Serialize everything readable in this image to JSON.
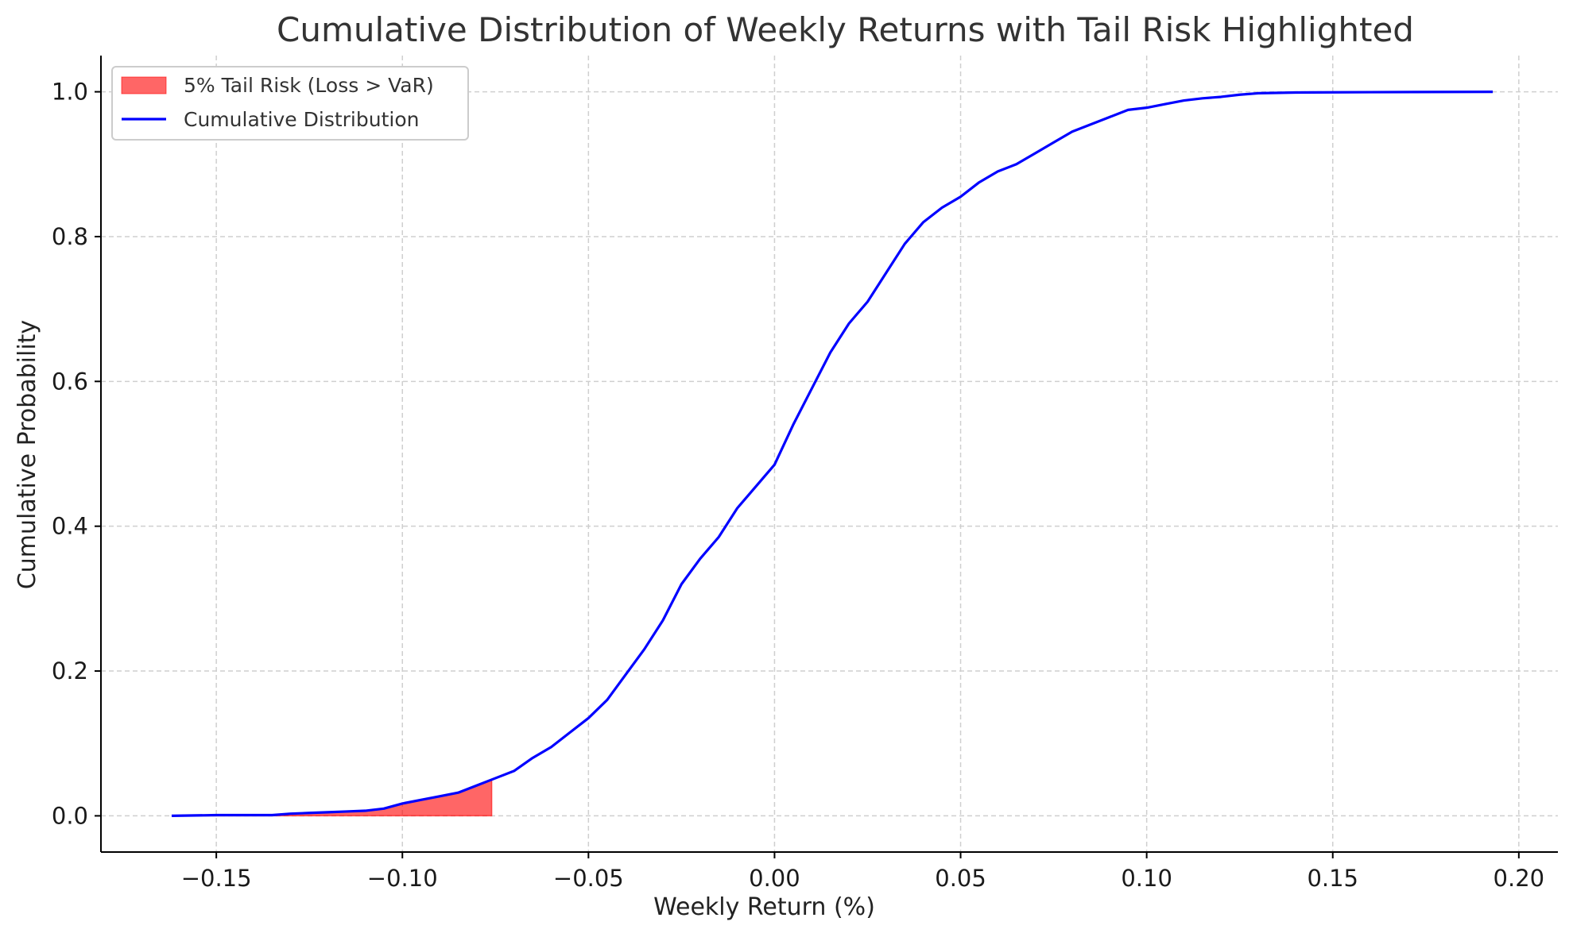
{
  "chart_data": {
    "type": "line",
    "title": "Cumulative Distribution of Weekly Returns with Tail Risk Highlighted",
    "xlabel": "Weekly Return (%)",
    "ylabel": "Cumulative Probability",
    "xlim": [
      -0.181,
      0.2105
    ],
    "ylim": [
      -0.05,
      1.05
    ],
    "grid": true,
    "legend_position": "top-left",
    "x_ticks": [
      -0.15,
      -0.1,
      -0.05,
      0.0,
      0.05,
      0.1,
      0.15,
      0.2
    ],
    "x_tick_labels": [
      "−0.15",
      "−0.10",
      "−0.05",
      "0.00",
      "0.05",
      "0.10",
      "0.15",
      "0.20"
    ],
    "y_ticks": [
      0.0,
      0.2,
      0.4,
      0.6,
      0.8,
      1.0
    ],
    "y_tick_labels": [
      "0.0",
      "0.2",
      "0.4",
      "0.6",
      "0.8",
      "1.0"
    ],
    "series": [
      {
        "name": "Cumulative Distribution",
        "color": "#0000ff",
        "x": [
          -0.162,
          -0.15,
          -0.14,
          -0.135,
          -0.13,
          -0.125,
          -0.12,
          -0.115,
          -0.11,
          -0.105,
          -0.1,
          -0.095,
          -0.09,
          -0.085,
          -0.08,
          -0.076,
          -0.07,
          -0.065,
          -0.06,
          -0.055,
          -0.05,
          -0.045,
          -0.04,
          -0.035,
          -0.03,
          -0.025,
          -0.02,
          -0.015,
          -0.01,
          -0.005,
          0.0,
          0.005,
          0.01,
          0.015,
          0.02,
          0.025,
          0.03,
          0.035,
          0.04,
          0.045,
          0.05,
          0.055,
          0.06,
          0.065,
          0.07,
          0.075,
          0.08,
          0.085,
          0.09,
          0.095,
          0.1,
          0.105,
          0.11,
          0.115,
          0.12,
          0.125,
          0.13,
          0.14,
          0.16,
          0.193
        ],
        "y": [
          0.0,
          0.001,
          0.001,
          0.001,
          0.003,
          0.004,
          0.005,
          0.006,
          0.007,
          0.01,
          0.017,
          0.022,
          0.027,
          0.032,
          0.042,
          0.05,
          0.062,
          0.08,
          0.095,
          0.115,
          0.135,
          0.16,
          0.195,
          0.23,
          0.27,
          0.32,
          0.355,
          0.385,
          0.425,
          0.455,
          0.485,
          0.54,
          0.59,
          0.64,
          0.68,
          0.71,
          0.75,
          0.79,
          0.82,
          0.84,
          0.855,
          0.875,
          0.89,
          0.9,
          0.915,
          0.93,
          0.945,
          0.955,
          0.965,
          0.975,
          0.978,
          0.983,
          0.988,
          0.991,
          0.993,
          0.996,
          0.998,
          0.999,
          0.9995,
          1.0
        ]
      }
    ],
    "tail_area": {
      "name": "5% Tail Risk (Loss > VaR)",
      "color": "#ff0000",
      "opacity": 0.6,
      "var_threshold": -0.076
    }
  }
}
